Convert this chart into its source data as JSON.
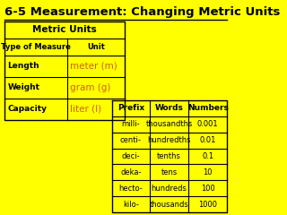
{
  "title": "6-5 Measurement: Changing Metric Units",
  "bg_color": "#FFFF00",
  "table1_rows": [
    [
      "Length",
      "meter (m)"
    ],
    [
      "Weight",
      "gram (g)"
    ],
    [
      "Capacity",
      "liter (l)"
    ]
  ],
  "table1_unit_color": "#CC6600",
  "table2_headers": [
    "Prefix",
    "Words",
    "Numbers"
  ],
  "table2_rows": [
    [
      "milli-",
      "thousandths",
      "0.001"
    ],
    [
      "centi-",
      "hundredths",
      "0.01"
    ],
    [
      "deci-",
      "tenths",
      "0.1"
    ],
    [
      "deka-",
      "tens",
      "10"
    ],
    [
      "hecto-",
      "hundreds",
      "100"
    ],
    [
      "kilo-",
      "thousands",
      "1000"
    ]
  ]
}
